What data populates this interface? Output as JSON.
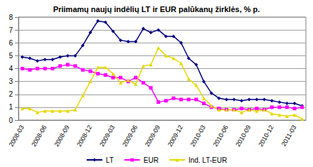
{
  "chart_data": {
    "type": "line",
    "title": "Priimamų naujų indėlių LT ir EUR palūkanų žirklės, % p.",
    "categories": [
      "2008-03",
      null,
      null,
      "2008-06",
      null,
      null,
      "2008-09",
      null,
      null,
      "2008-12",
      null,
      null,
      "2009-03",
      null,
      null,
      "2009-06",
      null,
      null,
      "2009-09",
      null,
      null,
      "2009-12",
      null,
      null,
      "2010-03",
      null,
      null,
      "2010-06",
      null,
      null,
      "2010-09",
      null,
      null,
      "2010-12",
      null,
      null,
      "2011-03",
      null
    ],
    "series": [
      {
        "name": "LT",
        "color": "#000080",
        "marker": "diamond",
        "line_style": "solid",
        "values": [
          4.9,
          4.8,
          4.6,
          4.7,
          4.7,
          4.9,
          5.0,
          5.0,
          5.8,
          6.8,
          7.7,
          7.6,
          6.9,
          6.2,
          6.1,
          6.1,
          7.1,
          6.8,
          7.0,
          6.5,
          6.5,
          6.0,
          4.8,
          4.3,
          3.0,
          2.1,
          1.7,
          1.6,
          1.6,
          1.5,
          1.6,
          1.6,
          1.6,
          1.5,
          1.4,
          1.3,
          1.3,
          1.1
        ]
      },
      {
        "name": "EUR",
        "color": "#ff00ff",
        "marker": "square",
        "line_style": "solid",
        "values": [
          4.0,
          3.9,
          4.0,
          4.0,
          4.0,
          4.2,
          4.3,
          4.2,
          3.9,
          3.8,
          3.6,
          3.5,
          3.3,
          3.3,
          3.0,
          3.3,
          2.9,
          2.5,
          1.4,
          1.5,
          1.7,
          1.6,
          1.6,
          1.6,
          1.3,
          1.0,
          0.9,
          0.8,
          0.8,
          0.9,
          0.8,
          0.9,
          0.8,
          1.0,
          1.0,
          1.0,
          0.9,
          1.0
        ]
      },
      {
        "name": "Ind. LT-EUR",
        "color": "#e6d800",
        "marker": "triangle",
        "line_style": "solid",
        "values": [
          0.9,
          0.9,
          0.6,
          0.7,
          0.7,
          0.7,
          0.7,
          0.8,
          1.9,
          3.0,
          4.1,
          4.1,
          3.6,
          2.9,
          3.1,
          2.8,
          4.2,
          4.3,
          5.6,
          5.0,
          4.8,
          4.4,
          3.2,
          2.7,
          1.7,
          1.1,
          0.8,
          0.8,
          0.8,
          0.6,
          0.8,
          0.7,
          0.8,
          0.5,
          0.4,
          0.3,
          0.4,
          0.1
        ]
      }
    ],
    "ylim": [
      0,
      8
    ],
    "yticks": [
      0,
      1,
      2,
      3,
      4,
      5,
      6,
      7,
      8
    ],
    "grid": true,
    "legend": "bottom"
  }
}
